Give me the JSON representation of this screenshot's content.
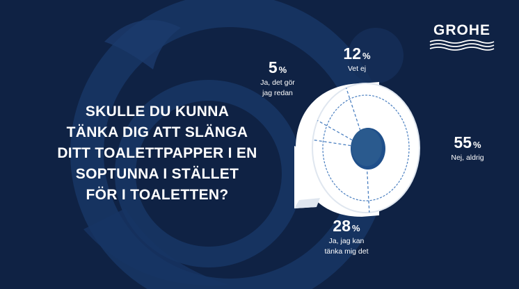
{
  "question_lines": [
    "SKULLE DU KUNNA",
    "TÄNKA DIG ATT SLÄNGA",
    "DITT TOALETTPAPPER I EN",
    "SOPTUNNA I STÄLLET",
    "FÖR I TOALETTEN?"
  ],
  "brand": "GROHE",
  "colors": {
    "background": "#0f2244",
    "paper": "#ffffff",
    "core": "#2a5a8e",
    "dash": "#4a7fc0"
  },
  "chart_data": {
    "type": "pie",
    "slices": [
      {
        "label": "Nej, aldrig",
        "value": 55,
        "unit": "%"
      },
      {
        "label": "Ja, jag kan tänka mig det",
        "value": 28,
        "unit": "%"
      },
      {
        "label": "Ja, det gör jag redan",
        "value": 5,
        "unit": "%"
      },
      {
        "label": "Vet ej",
        "value": 12,
        "unit": "%"
      }
    ]
  },
  "labels": {
    "nej": {
      "value": "55",
      "unit": "%",
      "line1": "Nej, aldrig",
      "line2": ""
    },
    "kan": {
      "value": "28",
      "unit": "%",
      "line1": "Ja, jag kan",
      "line2": "tänka mig det"
    },
    "redan": {
      "value": "5",
      "unit": "%",
      "line1": "Ja, det gör",
      "line2": "jag redan"
    },
    "vetej": {
      "value": "12",
      "unit": "%",
      "line1": "Vet ej",
      "line2": ""
    }
  }
}
